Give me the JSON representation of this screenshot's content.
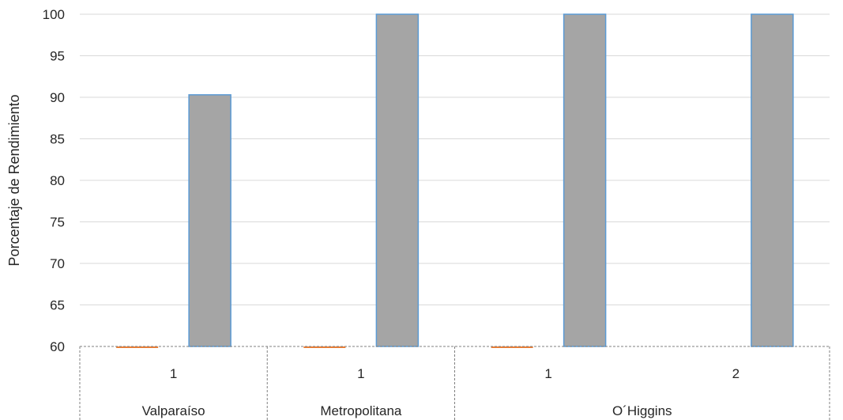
{
  "chart_data": {
    "type": "bar",
    "ylabel": "Porcentaje de Rendimiento",
    "ylim": [
      60,
      100
    ],
    "yticks": [
      60,
      65,
      70,
      75,
      80,
      85,
      90,
      95,
      100
    ],
    "grid": true,
    "categories": [
      {
        "label": "1",
        "group": "Valparaíso"
      },
      {
        "label": "1",
        "group": "Metropolitana"
      },
      {
        "label": "1",
        "group": "O´Higgins"
      },
      {
        "label": "2",
        "group": "O´Higgins"
      }
    ],
    "groups": [
      {
        "name": "Valparaíso",
        "count": 1
      },
      {
        "name": "Metropolitana",
        "count": 1
      },
      {
        "name": "O´Higgins",
        "count": 2
      }
    ],
    "series": [
      {
        "values": [
          60,
          60,
          60,
          null
        ],
        "color": "#ed7d31"
      },
      {
        "values": [
          90.3,
          100,
          100,
          100
        ],
        "color": "#a5a5a5",
        "edge": "#5b9bd5"
      }
    ]
  }
}
